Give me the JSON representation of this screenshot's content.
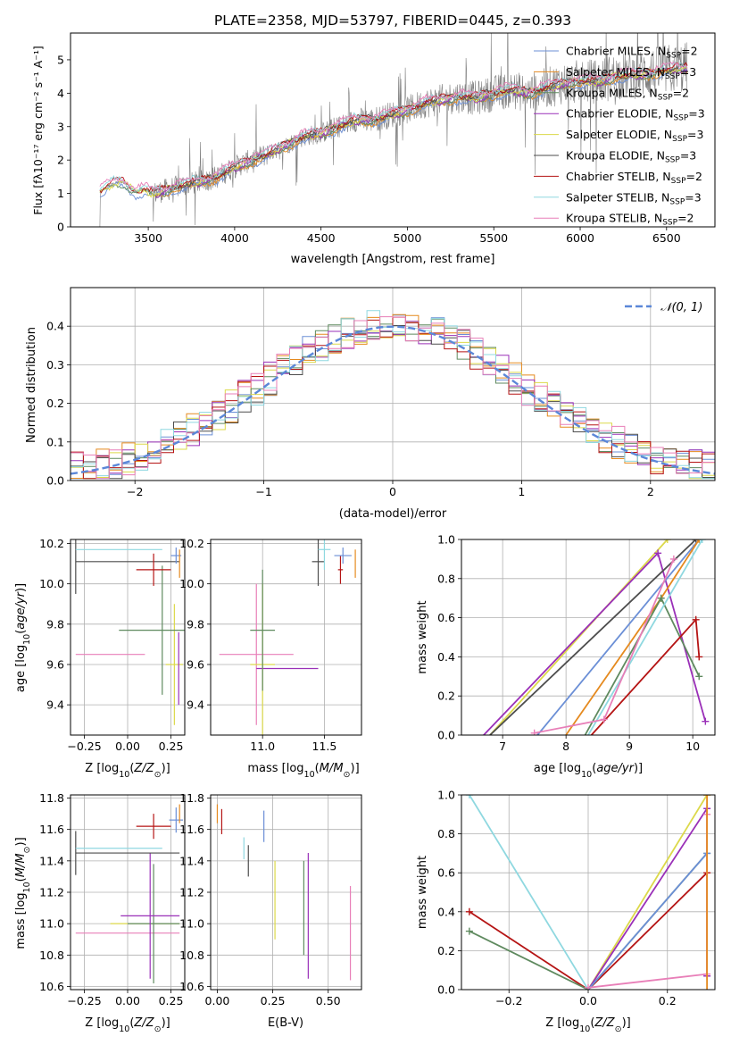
{
  "colors": {
    "Chabrier MILES": "#6b8fd6",
    "Salpeter MILES": "#e58a1f",
    "Kroupa MILES": "#5f8a5f",
    "Chabrier ELODIE": "#9a30b8",
    "Salpeter ELODIE": "#dcd94a",
    "Kroupa ELODIE": "#4d4d4d",
    "Chabrier STELIB": "#b51414",
    "Salpeter STELIB": "#8fd8e0",
    "Kroupa STELIB": "#e87fb8",
    "data": "#808080",
    "normal": "#5b87d8"
  },
  "chart_data": [
    {
      "id": "spectrum",
      "type": "line",
      "title": "PLATE=2358, MJD=53797, FIBERID=0445, z=0.393",
      "xlabel": "wavelength [Angstrom, rest frame]",
      "ylabel": "Flux [fλ10⁻¹⁷ erg cm⁻² s⁻¹ A⁻¹]",
      "xlim": [
        3050,
        6780
      ],
      "ylim": [
        0,
        5.8
      ],
      "xticks": [
        3500,
        4000,
        4500,
        5000,
        5500,
        6000,
        6500
      ],
      "yticks": [
        0,
        1,
        2,
        3,
        4,
        5
      ],
      "continuum": {
        "x": [
          3220,
          3300,
          3350,
          3420,
          3480,
          3530,
          3600,
          3700,
          3800,
          3900,
          4000,
          4100,
          4200,
          4300,
          4400,
          4500,
          4600,
          4700,
          4800,
          4900,
          5000,
          5100,
          5200,
          5300,
          5400,
          5500,
          5600,
          5700,
          5800,
          5900,
          6000,
          6100,
          6200,
          6300,
          6400,
          6500,
          6600
        ],
        "y": [
          1.05,
          1.3,
          1.35,
          1.05,
          1.1,
          1.0,
          1.1,
          1.25,
          1.35,
          1.5,
          1.8,
          2.0,
          2.2,
          2.45,
          2.7,
          2.8,
          3.0,
          3.2,
          3.2,
          3.35,
          3.5,
          3.7,
          3.8,
          3.9,
          3.85,
          4.0,
          4.1,
          4.0,
          4.15,
          4.3,
          4.35,
          4.35,
          4.5,
          4.55,
          4.6,
          4.7,
          4.75
        ]
      },
      "legend": [
        {
          "label": "Chabrier MILES, N",
          "sub": "SSP",
          "suffix": "=2",
          "series": "Chabrier MILES"
        },
        {
          "label": "Salpeter MILES, N",
          "sub": "SSP",
          "suffix": "=3",
          "series": "Salpeter MILES"
        },
        {
          "label": "Kroupa MILES, N",
          "sub": "SSP",
          "suffix": "=2",
          "series": "Kroupa MILES"
        },
        {
          "label": "Chabrier ELODIE, N",
          "sub": "SSP",
          "suffix": "=3",
          "series": "Chabrier ELODIE"
        },
        {
          "label": "Salpeter ELODIE, N",
          "sub": "SSP",
          "suffix": "=3",
          "series": "Salpeter ELODIE"
        },
        {
          "label": "Kroupa ELODIE, N",
          "sub": "SSP",
          "suffix": "=3",
          "series": "Kroupa ELODIE"
        },
        {
          "label": "Chabrier STELIB, N",
          "sub": "SSP",
          "suffix": "=2",
          "series": "Chabrier STELIB"
        },
        {
          "label": "Salpeter STELIB, N",
          "sub": "SSP",
          "suffix": "=3",
          "series": "Salpeter STELIB"
        },
        {
          "label": "Kroupa STELIB, N",
          "sub": "SSP",
          "suffix": "=2",
          "series": "Kroupa STELIB"
        }
      ],
      "legend_position": "upper-right"
    },
    {
      "id": "residuals",
      "type": "line",
      "xlabel": "(data-model)/error",
      "ylabel": "Normed distribution",
      "xlim": [
        -2.5,
        2.5
      ],
      "ylim": [
        0,
        0.5
      ],
      "xticks": [
        -2,
        -1,
        0,
        1,
        2
      ],
      "yticks": [
        0.0,
        0.1,
        0.2,
        0.3,
        0.4
      ],
      "bin_width": 0.1,
      "normal_curve": {
        "label": "𝒩(0, 1)",
        "mu": 0,
        "sigma": 1
      },
      "legend_position": "upper-right",
      "grid": true
    },
    {
      "id": "age_vs_Z",
      "type": "scatter",
      "xlabel": "Z [log₁₀(Z/Z⊙)]",
      "ylabel": "age  [log₁₀(age/yr)]",
      "xlim": [
        -0.33,
        0.33
      ],
      "ylim": [
        9.25,
        10.22
      ],
      "xticks": [
        -0.25,
        0.0,
        0.25
      ],
      "yticks": [
        9.4,
        9.6,
        9.8,
        10.0,
        10.2
      ],
      "points": [
        {
          "series": "Kroupa STELIB",
          "x": -0.1,
          "y": 9.65,
          "xerr": 0.2,
          "yerr": 0
        },
        {
          "series": "Salpeter ELODIE",
          "x": 0.27,
          "y": 9.6,
          "xerr": 0.05,
          "yerr": 0.3
        },
        {
          "series": "Chabrier ELODIE",
          "x": 0.0,
          "y": 9.58,
          "xerr": 0.0,
          "yerr": 0
        },
        {
          "series": "Chabrier ELODIE",
          "x": 0.295,
          "y": 9.58,
          "xerr": 0.0,
          "yerr": 0.18
        },
        {
          "series": "Kroupa MILES",
          "x": 0.2,
          "y": 9.77,
          "xerr": 0.25,
          "yerr": 0.32
        },
        {
          "series": "Kroupa ELODIE",
          "x": -0.3,
          "y": 10.11,
          "xerr": 0.0,
          "yerr": 0.16
        },
        {
          "series": "Kroupa ELODIE",
          "x": 0.0,
          "y": 10.11,
          "xerr": 0.3,
          "yerr": 0
        },
        {
          "series": "Salpeter STELIB",
          "x": -0.05,
          "y": 10.17,
          "xerr": 0.25,
          "yerr": 0
        },
        {
          "series": "Chabrier STELIB",
          "x": 0.15,
          "y": 10.07,
          "xerr": 0.1,
          "yerr": 0.08
        },
        {
          "series": "Chabrier MILES",
          "x": 0.28,
          "y": 10.14,
          "xerr": 0.03,
          "yerr": 0.04
        },
        {
          "series": "Salpeter MILES",
          "x": 0.3,
          "y": 10.1,
          "xerr": 0.0,
          "yerr": 0.07
        }
      ]
    },
    {
      "id": "age_vs_mass",
      "type": "scatter",
      "xlabel": "mass [log₁₀(M/M⊙)]",
      "ylabel": "",
      "xlim": [
        10.58,
        11.8
      ],
      "ylim": [
        9.25,
        10.22
      ],
      "xticks": [
        11.0,
        11.5
      ],
      "yticks": [
        9.4,
        9.6,
        9.8,
        10.0,
        10.2
      ],
      "points": [
        {
          "series": "Kroupa STELIB",
          "x": 10.95,
          "y": 9.65,
          "xerr": 0.3,
          "yerr": 0.35
        },
        {
          "series": "Chabrier ELODIE",
          "x": 11.2,
          "y": 9.58,
          "xerr": 0.25,
          "yerr": 0
        },
        {
          "series": "Salpeter ELODIE",
          "x": 11.0,
          "y": 9.6,
          "xerr": 0.1,
          "yerr": 0.4
        },
        {
          "series": "Kroupa MILES",
          "x": 11.0,
          "y": 9.77,
          "xerr": 0.1,
          "yerr": 0.3
        },
        {
          "series": "Kroupa ELODIE",
          "x": 11.45,
          "y": 10.11,
          "xerr": 0.05,
          "yerr": 0.12
        },
        {
          "series": "Salpeter STELIB",
          "x": 11.5,
          "y": 10.17,
          "xerr": 0.05,
          "yerr": 0.1
        },
        {
          "series": "Chabrier STELIB",
          "x": 11.63,
          "y": 10.07,
          "xerr": 0.02,
          "yerr": 0.07
        },
        {
          "series": "Chabrier MILES",
          "x": 11.65,
          "y": 10.14,
          "xerr": 0.07,
          "yerr": 0.04
        },
        {
          "series": "Salpeter MILES",
          "x": 11.75,
          "y": 10.1,
          "xerr": 0.0,
          "yerr": 0.07
        }
      ]
    },
    {
      "id": "weight_vs_age",
      "type": "line",
      "xlabel": "age  [log₁₀(age/yr)]",
      "ylabel": "mass weight",
      "xlim": [
        6.35,
        10.35
      ],
      "ylim": [
        0,
        1
      ],
      "xticks": [
        7,
        8,
        9,
        10
      ],
      "yticks": [
        0.0,
        0.2,
        0.4,
        0.6,
        0.8,
        1.0
      ],
      "grid": true,
      "series": [
        {
          "name": "Salpeter ELODIE",
          "x": [
            6.8,
            9.6
          ],
          "y": [
            0.0,
            1.0
          ]
        },
        {
          "name": "Chabrier ELODIE",
          "x": [
            6.7,
            9.45,
            10.2
          ],
          "y": [
            0.0,
            0.93,
            0.07
          ]
        },
        {
          "name": "Kroupa ELODIE",
          "x": [
            6.8,
            10.05
          ],
          "y": [
            0.0,
            1.0
          ]
        },
        {
          "name": "Chabrier MILES",
          "x": [
            7.55,
            10.1
          ],
          "y": [
            0.0,
            1.0
          ]
        },
        {
          "name": "Salpeter MILES",
          "x": [
            8.0,
            9.5,
            10.1
          ],
          "y": [
            0.0,
            0.7,
            1.0
          ]
        },
        {
          "name": "Kroupa MILES",
          "x": [
            8.3,
            9.5,
            10.1
          ],
          "y": [
            0.0,
            0.7,
            0.3
          ]
        },
        {
          "name": "Salpeter STELIB",
          "x": [
            8.35,
            10.15
          ],
          "y": [
            0.0,
            1.0
          ]
        },
        {
          "name": "Chabrier STELIB",
          "x": [
            8.4,
            10.05,
            10.1
          ],
          "y": [
            0.0,
            0.59,
            0.4
          ]
        },
        {
          "name": "Kroupa STELIB",
          "x": [
            7.5,
            8.6,
            9.7
          ],
          "y": [
            0.01,
            0.08,
            0.9
          ]
        }
      ]
    },
    {
      "id": "mass_vs_Z",
      "type": "scatter",
      "xlabel": "Z [log₁₀(Z/Z⊙)]",
      "ylabel": "mass [log₁₀(M/M⊙)]",
      "xlim": [
        -0.33,
        0.33
      ],
      "ylim": [
        10.58,
        11.82
      ],
      "xticks": [
        -0.25,
        0.0,
        0.25
      ],
      "yticks": [
        10.6,
        10.8,
        11.0,
        11.2,
        11.4,
        11.6,
        11.8
      ],
      "points": [
        {
          "series": "Kroupa STELIB",
          "x": 0.0,
          "y": 10.94,
          "xerr": 0.3,
          "yerr": 0
        },
        {
          "series": "Salpeter ELODIE",
          "x": 0.1,
          "y": 11.0,
          "xerr": 0.2,
          "yerr": 0
        },
        {
          "series": "Kroupa MILES",
          "x": 0.15,
          "y": 11.0,
          "xerr": 0.15,
          "yerr": 0.38
        },
        {
          "series": "Chabrier ELODIE",
          "x": 0.13,
          "y": 11.05,
          "xerr": 0.17,
          "yerr": 0.4
        },
        {
          "series": "Kroupa ELODIE",
          "x": -0.3,
          "y": 11.45,
          "xerr": 0.0,
          "yerr": 0.14
        },
        {
          "series": "Kroupa ELODIE",
          "x": 0.0,
          "y": 11.45,
          "xerr": 0.3,
          "yerr": 0
        },
        {
          "series": "Salpeter STELIB",
          "x": -0.05,
          "y": 11.48,
          "xerr": 0.25,
          "yerr": 0
        },
        {
          "series": "Chabrier STELIB",
          "x": 0.15,
          "y": 11.62,
          "xerr": 0.1,
          "yerr": 0.08
        },
        {
          "series": "Chabrier MILES",
          "x": 0.28,
          "y": 11.66,
          "xerr": 0.04,
          "yerr": 0.08
        },
        {
          "series": "Salpeter MILES",
          "x": 0.3,
          "y": 11.7,
          "xerr": 0.0,
          "yerr": 0.06
        }
      ]
    },
    {
      "id": "mass_vs_ebv",
      "type": "scatter",
      "xlabel": "E(B-V)",
      "ylabel": "",
      "xlim": [
        -0.03,
        0.65
      ],
      "ylim": [
        10.58,
        11.82
      ],
      "xticks": [
        0.0,
        0.25,
        0.5
      ],
      "yticks": [
        10.6,
        10.8,
        11.0,
        11.2,
        11.4,
        11.6,
        11.8
      ],
      "points": [
        {
          "series": "Salpeter MILES",
          "x": 0.0,
          "y": 11.7,
          "xerr": 0,
          "yerr": 0.06
        },
        {
          "series": "Chabrier STELIB",
          "x": 0.02,
          "y": 11.65,
          "xerr": 0,
          "yerr": 0.08
        },
        {
          "series": "Salpeter STELIB",
          "x": 0.12,
          "y": 11.48,
          "xerr": 0,
          "yerr": 0.07
        },
        {
          "series": "Kroupa ELODIE",
          "x": 0.14,
          "y": 11.4,
          "xerr": 0,
          "yerr": 0.1
        },
        {
          "series": "Chabrier MILES",
          "x": 0.21,
          "y": 11.62,
          "xerr": 0,
          "yerr": 0.1
        },
        {
          "series": "Salpeter ELODIE",
          "x": 0.26,
          "y": 11.15,
          "xerr": 0,
          "yerr": 0.25
        },
        {
          "series": "Kroupa MILES",
          "x": 0.39,
          "y": 11.1,
          "xerr": 0,
          "yerr": 0.3
        },
        {
          "series": "Chabrier ELODIE",
          "x": 0.41,
          "y": 11.05,
          "xerr": 0,
          "yerr": 0.4
        },
        {
          "series": "Kroupa STELIB",
          "x": 0.6,
          "y": 10.94,
          "xerr": 0,
          "yerr": 0.3
        }
      ]
    },
    {
      "id": "weight_vs_Z",
      "type": "line",
      "xlabel": "Z [log₁₀(Z/Z⊙)]",
      "ylabel": "mass weight",
      "xlim": [
        -0.32,
        0.32
      ],
      "ylim": [
        0,
        1
      ],
      "xticks": [
        -0.2,
        0.0,
        0.2
      ],
      "yticks": [
        0.0,
        0.2,
        0.4,
        0.6,
        0.8,
        1.0
      ],
      "grid": true,
      "series": [
        {
          "name": "Salpeter STELIB",
          "x": [
            -0.3,
            0.0
          ],
          "y": [
            1.0,
            0.0
          ]
        },
        {
          "name": "Chabrier STELIB",
          "x": [
            -0.3,
            0.0,
            0.3
          ],
          "y": [
            0.4,
            0.0,
            0.6
          ]
        },
        {
          "name": "Kroupa MILES",
          "x": [
            -0.3,
            0.0,
            0.3
          ],
          "y": [
            0.3,
            0.0,
            0.7
          ]
        },
        {
          "name": "Salpeter ELODIE",
          "x": [
            0.0,
            0.3
          ],
          "y": [
            0.0,
            1.0
          ]
        },
        {
          "name": "Chabrier ELODIE",
          "x": [
            0.0,
            0.3,
            0.3
          ],
          "y": [
            0.0,
            0.93,
            0.07
          ]
        },
        {
          "name": "Chabrier MILES",
          "x": [
            0.0,
            0.3
          ],
          "y": [
            0.0,
            0.7
          ]
        },
        {
          "name": "Kroupa STELIB",
          "x": [
            0.0,
            0.3,
            0.3
          ],
          "y": [
            0.01,
            0.08,
            0.9
          ]
        },
        {
          "name": "Salpeter MILES",
          "x": [
            0.3,
            0.3
          ],
          "y": [
            0.0,
            1.0
          ]
        }
      ]
    }
  ]
}
